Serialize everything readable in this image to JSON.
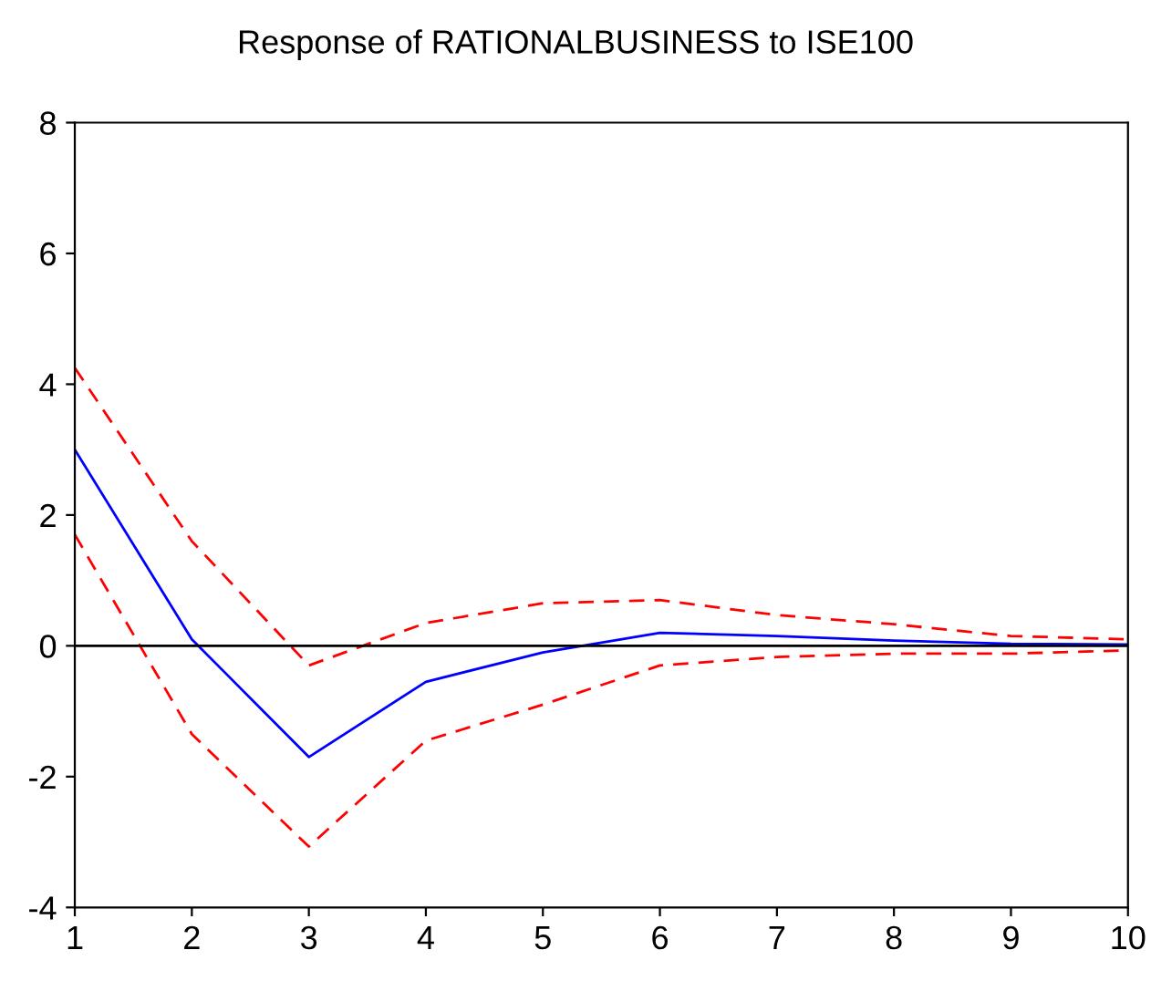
{
  "chart_data": {
    "type": "line",
    "title": "Response of RATIONALBUSINESS to ISE100",
    "x": [
      1,
      2,
      3,
      4,
      5,
      6,
      7,
      8,
      9,
      10
    ],
    "series": [
      {
        "color": "#0000ff",
        "line_style": "solid",
        "values": [
          3.0,
          0.1,
          -1.7,
          -0.55,
          -0.1,
          0.2,
          0.15,
          0.08,
          0.03,
          0.02
        ]
      },
      {
        "color": "#ff0000",
        "line_style": "dashed",
        "values": [
          4.25,
          1.6,
          -0.3,
          0.35,
          0.65,
          0.7,
          0.47,
          0.33,
          0.15,
          0.1
        ]
      },
      {
        "color": "#ff0000",
        "line_style": "dashed",
        "values": [
          1.7,
          -1.35,
          -3.07,
          -1.45,
          -0.9,
          -0.3,
          -0.17,
          -0.12,
          -0.12,
          -0.07
        ]
      }
    ],
    "xlim": [
      1,
      10
    ],
    "xticks": [
      1,
      2,
      3,
      4,
      5,
      6,
      7,
      8,
      9,
      10
    ],
    "ylim": [
      -4,
      8
    ],
    "yticks": [
      -4,
      -2,
      0,
      2,
      4,
      6,
      8
    ],
    "ref_lines": [
      {
        "axis": "y",
        "value": 0,
        "color": "#000000"
      }
    ],
    "grid": false,
    "legend": false
  }
}
